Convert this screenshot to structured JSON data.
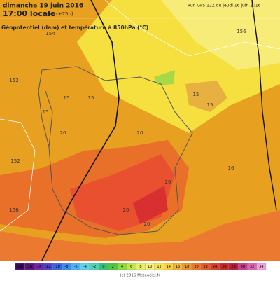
{
  "header": {
    "date": "dimanche 19 juin 2016",
    "time": "17:00 locale",
    "lead": "(+75h)",
    "run": "Run GFS 12Z du jeudi 16 juin 2016",
    "subtitle": "Géopotentiel (dam) et température à 850hPa (°C)"
  },
  "map_labels": [
    "152",
    "152",
    "15",
    "15",
    "15",
    "15",
    "20",
    "20",
    "20",
    "20",
    "15",
    "154",
    "156",
    "156",
    "16",
    "20"
  ],
  "legend": {
    "ticks": [
      "-18",
      "-16",
      "-14",
      "-12",
      "-10",
      "-8",
      "-6",
      "-4",
      "-2",
      "0",
      "2",
      "4",
      "6",
      "8",
      "10",
      "12",
      "14",
      "16",
      "18",
      "20",
      "22",
      "24",
      "26",
      "28",
      "30",
      "32",
      "34"
    ],
    "colors": [
      "#3c0a5a",
      "#5a1478",
      "#6e28a0",
      "#5040c8",
      "#3c64dc",
      "#3c8cf0",
      "#50b4f0",
      "#64d2e6",
      "#50d2b4",
      "#3cbe78",
      "#50c83c",
      "#8cdc3c",
      "#bee650",
      "#e6f064",
      "#f5f57d",
      "#fae650",
      "#fad23c",
      "#f5b432",
      "#f0962d",
      "#eb7828",
      "#e65a28",
      "#dc3c28",
      "#c82828",
      "#b41e3c",
      "#c83c8c",
      "#dc64b4",
      "#f0a0dc"
    ],
    "credit": "(c) 2016 Meteociel.fr"
  }
}
